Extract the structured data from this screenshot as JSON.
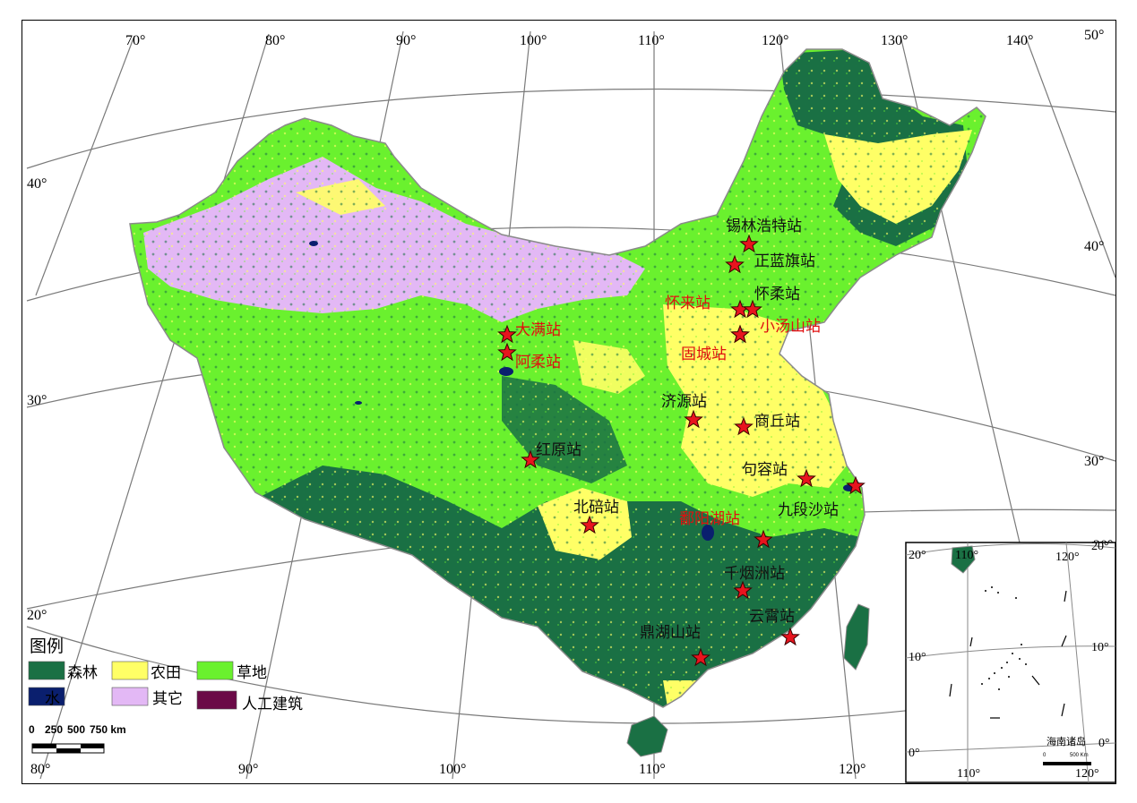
{
  "colors": {
    "forest": "#1a7044",
    "water": "#0a1f6e",
    "farmland": "#ffff66",
    "grassland": "#6af12e",
    "other": "#e3b8f5",
    "builtup": "#6b0a47",
    "station_star": "#e8141e"
  },
  "ticks": {
    "top": [
      "70°",
      "80°",
      "90°",
      "100°",
      "110°",
      "120°",
      "130°",
      "140°",
      "50°"
    ],
    "bottom": [
      "80°",
      "90°",
      "100°",
      "110°",
      "120°"
    ],
    "left": [
      "40°",
      "30°",
      "20°"
    ],
    "right": [
      "40°",
      "30°",
      "20°"
    ]
  },
  "stations": [
    {
      "name": "锡林浩特站",
      "color": "black"
    },
    {
      "name": "正蓝旗站",
      "color": "black"
    },
    {
      "name": "怀来站",
      "color": "red"
    },
    {
      "name": "怀柔站",
      "color": "black"
    },
    {
      "name": "小汤山站",
      "color": "red"
    },
    {
      "name": "固城站",
      "color": "red"
    },
    {
      "name": "大满站",
      "color": "red"
    },
    {
      "name": "阿柔站",
      "color": "red"
    },
    {
      "name": "济源站",
      "color": "black"
    },
    {
      "name": "商丘站",
      "color": "black"
    },
    {
      "name": "红原站",
      "color": "black"
    },
    {
      "name": "句容站",
      "color": "black"
    },
    {
      "name": "北碚站",
      "color": "black"
    },
    {
      "name": "鄱阳湖站",
      "color": "red"
    },
    {
      "name": "九段沙站",
      "color": "black"
    },
    {
      "name": "千烟洲站",
      "color": "black"
    },
    {
      "name": "云霄站",
      "color": "black"
    },
    {
      "name": "鼎湖山站",
      "color": "black"
    }
  ],
  "legend": {
    "title": "图例",
    "items": [
      {
        "label": "森林",
        "key": "forest"
      },
      {
        "label": "农田",
        "key": "farmland"
      },
      {
        "label": "草地",
        "key": "grassland"
      },
      {
        "label": "水",
        "key": "water"
      },
      {
        "label": "其它",
        "key": "other"
      },
      {
        "label": "人工建筑",
        "key": "builtup"
      }
    ]
  },
  "scale_bar": {
    "labels": [
      "0",
      "250",
      "500",
      "750 km"
    ]
  },
  "inset": {
    "title": "海南诸岛",
    "top_ticks": [
      "110°",
      "120°"
    ],
    "bottom_ticks": [
      "110°",
      "120°"
    ],
    "left_ticks": [
      "20°",
      "10°",
      "0°"
    ],
    "right_ticks": [
      "20°",
      "10°",
      "0°"
    ],
    "scale_labels": [
      "0",
      "500 Km"
    ]
  }
}
